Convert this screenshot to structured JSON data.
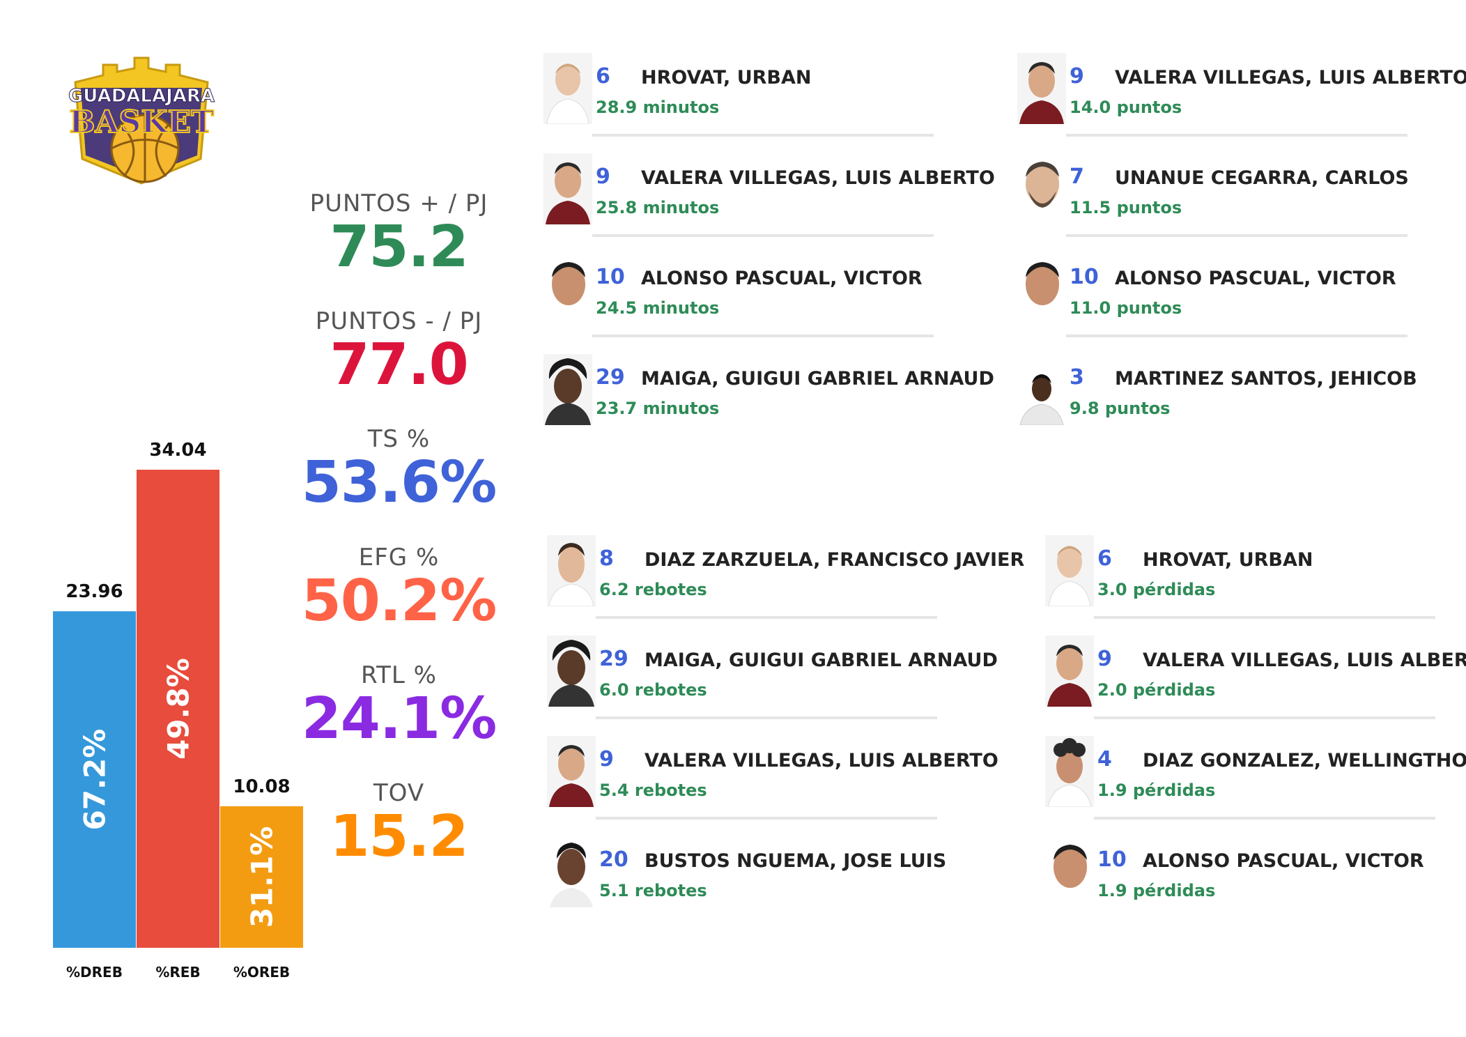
{
  "logo": {
    "line1": "GUADALAJARA",
    "line2": "BASKET"
  },
  "chart_data": {
    "type": "bar",
    "categories": [
      "%DREB",
      "%REB",
      "%OREB"
    ],
    "values": [
      23.96,
      34.04,
      10.08
    ],
    "percent_labels": [
      "67.2%",
      "49.8%",
      "31.1%"
    ],
    "value_labels": [
      "23.96",
      "34.04",
      "10.08"
    ],
    "colors": [
      "#3498db",
      "#e74c3c",
      "#f39c12"
    ],
    "ylim": [
      0,
      34.04
    ],
    "title": "",
    "xlabel": "",
    "ylabel": ""
  },
  "kpis": [
    {
      "label": "PUNTOS + / PJ",
      "value": "75.2",
      "color": "#2e8b57"
    },
    {
      "label": "PUNTOS - / PJ",
      "value": "77.0",
      "color": "#dc143c"
    },
    {
      "label": "TS %",
      "value": "53.6%",
      "color": "#3f62d8"
    },
    {
      "label": "EFG %",
      "value": "50.2%",
      "color": "#ff6347"
    },
    {
      "label": "RTL %",
      "value": "24.1%",
      "color": "#8a2be2"
    },
    {
      "label": "TOV",
      "value": "15.2",
      "color": "#ff8c00"
    }
  ],
  "leaders": {
    "minutos": [
      {
        "number": "6",
        "name": "HROVAT, URBAN",
        "stat": "28.9 minutos"
      },
      {
        "number": "9",
        "name": "VALERA VILLEGAS, LUIS ALBERTO",
        "stat": "25.8 minutos"
      },
      {
        "number": "10",
        "name": "ALONSO PASCUAL, VICTOR",
        "stat": "24.5 minutos"
      },
      {
        "number": "29",
        "name": "MAIGA, GUIGUI GABRIEL ARNAUD",
        "stat": "23.7 minutos"
      }
    ],
    "puntos": [
      {
        "number": "9",
        "name": "VALERA VILLEGAS, LUIS ALBERTO",
        "stat": "14.0 puntos"
      },
      {
        "number": "7",
        "name": "UNANUE CEGARRA, CARLOS",
        "stat": "11.5 puntos"
      },
      {
        "number": "10",
        "name": "ALONSO PASCUAL, VICTOR",
        "stat": "11.0 puntos"
      },
      {
        "number": "3",
        "name": "MARTINEZ SANTOS, JEHICOB",
        "stat": "9.8 puntos"
      }
    ],
    "rebotes": [
      {
        "number": "8",
        "name": "DIAZ ZARZUELA, FRANCISCO JAVIER",
        "stat": "6.2 rebotes"
      },
      {
        "number": "29",
        "name": "MAIGA, GUIGUI GABRIEL ARNAUD",
        "stat": "6.0 rebotes"
      },
      {
        "number": "9",
        "name": "VALERA VILLEGAS, LUIS ALBERTO",
        "stat": "5.4 rebotes"
      },
      {
        "number": "20",
        "name": "BUSTOS NGUEMA, JOSE LUIS",
        "stat": "5.1 rebotes"
      }
    ],
    "perdidas": [
      {
        "number": "6",
        "name": "HROVAT, URBAN",
        "stat": "3.0 pérdidas"
      },
      {
        "number": "9",
        "name": "VALERA VILLEGAS, LUIS ALBERTO",
        "stat": "2.0 pérdidas"
      },
      {
        "number": "4",
        "name": "DIAZ GONZALEZ, WELLINGTHON",
        "stat": "1.9 pérdidas"
      },
      {
        "number": "10",
        "name": "ALONSO PASCUAL, VICTOR",
        "stat": "1.9 pérdidas"
      }
    ]
  }
}
